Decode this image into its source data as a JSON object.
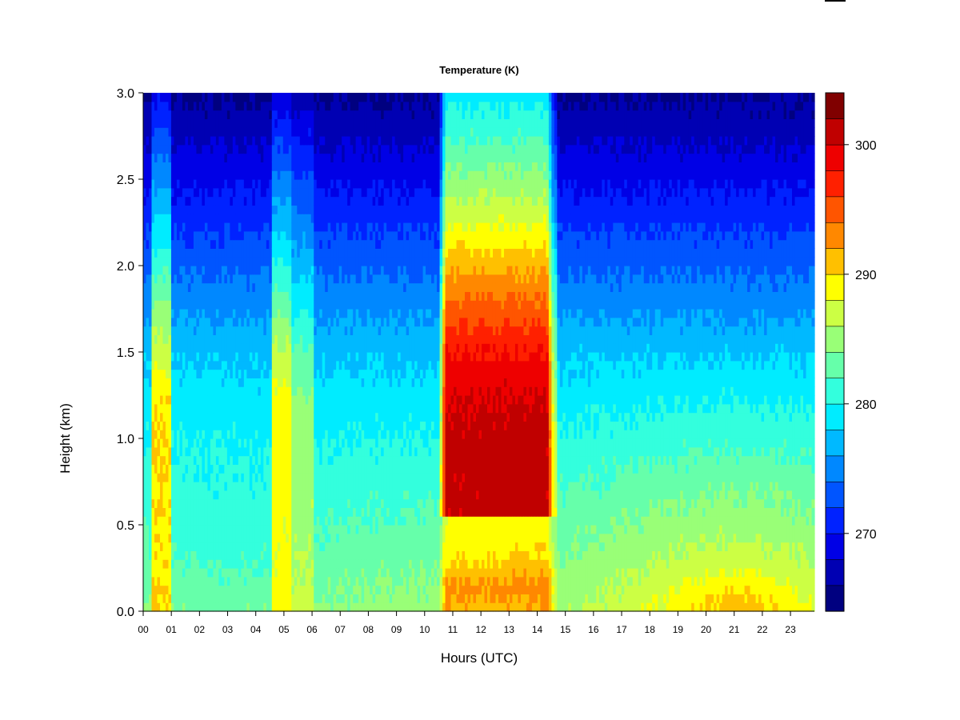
{
  "chart_data": {
    "type": "heatmap",
    "title": "Temperature (K)",
    "xlabel": "Hours (UTC)",
    "ylabel": "Height (km)",
    "x_ticks": [
      "00",
      "01",
      "02",
      "03",
      "04",
      "05",
      "06",
      "07",
      "08",
      "09",
      "10",
      "11",
      "12",
      "13",
      "14",
      "15",
      "16",
      "17",
      "18",
      "19",
      "20",
      "21",
      "22",
      "23"
    ],
    "y_ticks": [
      "0.0",
      "0.5",
      "1.0",
      "1.5",
      "2.0",
      "2.5",
      "3.0"
    ],
    "xlim": [
      0,
      23.85
    ],
    "ylim": [
      0,
      3.0
    ],
    "colorbar": {
      "ticks": [
        "270",
        "280",
        "290",
        "300"
      ],
      "tick_values": [
        270,
        280,
        290,
        300
      ],
      "range": [
        264,
        304
      ],
      "levels": 20,
      "colors": [
        "#000080",
        "#0000b3",
        "#0000e6",
        "#0022ff",
        "#0055ff",
        "#0088ff",
        "#00b9ff",
        "#00ecff",
        "#33ffdd",
        "#66ffaa",
        "#99ff77",
        "#ccff44",
        "#ffff00",
        "#ffc000",
        "#ff8800",
        "#ff5500",
        "#ff2000",
        "#ee0000",
        "#c00000",
        "#800000"
      ]
    },
    "description_of_structure": {
      "warm_episodes_hours": [
        [
          0.3,
          1.0
        ],
        [
          4.6,
          6.1
        ],
        [
          10.5,
          14.7
        ]
      ],
      "peak_temperature_K": 304,
      "peak_location": {
        "hour": 13.5,
        "height_km": 1.2
      },
      "surface_warm_layer_hours": [
        18.5,
        23.0
      ]
    }
  }
}
